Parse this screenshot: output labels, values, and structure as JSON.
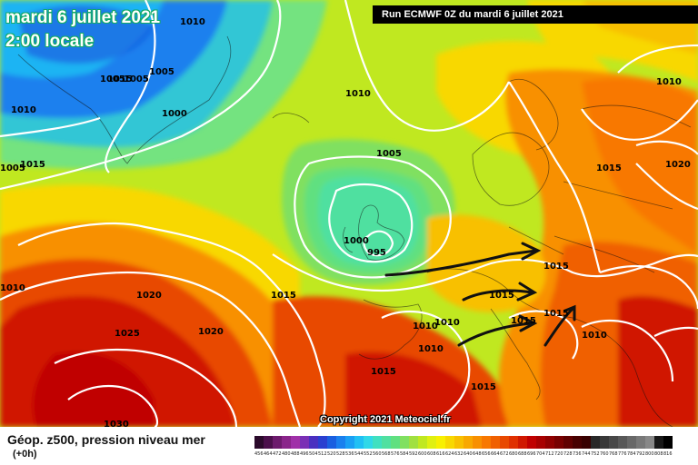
{
  "header": {
    "date": "mardi 6 juillet 2021",
    "time": "2:00 locale",
    "run": "Run ECMWF 0Z du mardi 6 juillet 2021"
  },
  "footer": {
    "title": "Géop. z500, pression niveau mer",
    "subtitle": "(+0h)",
    "copyright": "Copyright 2021 Meteociel.fr"
  },
  "legend": {
    "values": [
      "456",
      "464",
      "472",
      "480",
      "488",
      "496",
      "504",
      "512",
      "520",
      "528",
      "536",
      "544",
      "552",
      "560",
      "568",
      "576",
      "584",
      "592",
      "600",
      "608",
      "616",
      "624",
      "632",
      "640",
      "648",
      "656",
      "664",
      "672",
      "680",
      "688",
      "696",
      "704",
      "712",
      "720",
      "728",
      "736",
      "744",
      "752",
      "760",
      "768",
      "776",
      "784",
      "792",
      "800",
      "808",
      "816"
    ],
    "colors": [
      "#2b0a2b",
      "#4b0f4b",
      "#6d1a6d",
      "#8a248a",
      "#a030a8",
      "#7a2fb5",
      "#4a2fc0",
      "#2a3fd0",
      "#1a5fe0",
      "#1a80ee",
      "#1aa0f4",
      "#20c0f4",
      "#30d8e8",
      "#40e0c0",
      "#50e0a0",
      "#60e080",
      "#80e060",
      "#a0e040",
      "#c0e820",
      "#e0f010",
      "#f8f000",
      "#f8d800",
      "#f8c000",
      "#f8a800",
      "#f89000",
      "#f87800",
      "#f06000",
      "#e84800",
      "#e03000",
      "#d01800",
      "#c00000",
      "#a80000",
      "#900000",
      "#780000",
      "#600000",
      "#480000",
      "#380000",
      "#282828",
      "#383838",
      "#484848",
      "#585858",
      "#686868",
      "#787878",
      "#888888",
      "#181818",
      "#000000"
    ]
  },
  "isobars": [
    {
      "label": "1010"
    },
    {
      "label": "1005"
    },
    {
      "label": "1010"
    },
    {
      "label": "1000"
    },
    {
      "label": "1005"
    },
    {
      "label": "1005"
    },
    {
      "label": "1010"
    },
    {
      "label": "1005"
    },
    {
      "label": "1000"
    },
    {
      "label": "995"
    },
    {
      "label": "1010"
    },
    {
      "label": "1015"
    },
    {
      "label": "1020"
    },
    {
      "label": "1025"
    },
    {
      "label": "1020"
    },
    {
      "label": "1030"
    },
    {
      "label": "1015"
    },
    {
      "label": "1010"
    },
    {
      "label": "1010"
    },
    {
      "label": "1010"
    },
    {
      "label": "1015"
    },
    {
      "label": "1015"
    },
    {
      "label": "1015"
    },
    {
      "label": "1015"
    },
    {
      "label": "1015"
    },
    {
      "label": "1015"
    },
    {
      "label": "1010"
    },
    {
      "label": "1020"
    },
    {
      "label": "1010"
    },
    {
      "label": "1015"
    },
    {
      "label": "1015"
    },
    {
      "label": "1005"
    }
  ]
}
